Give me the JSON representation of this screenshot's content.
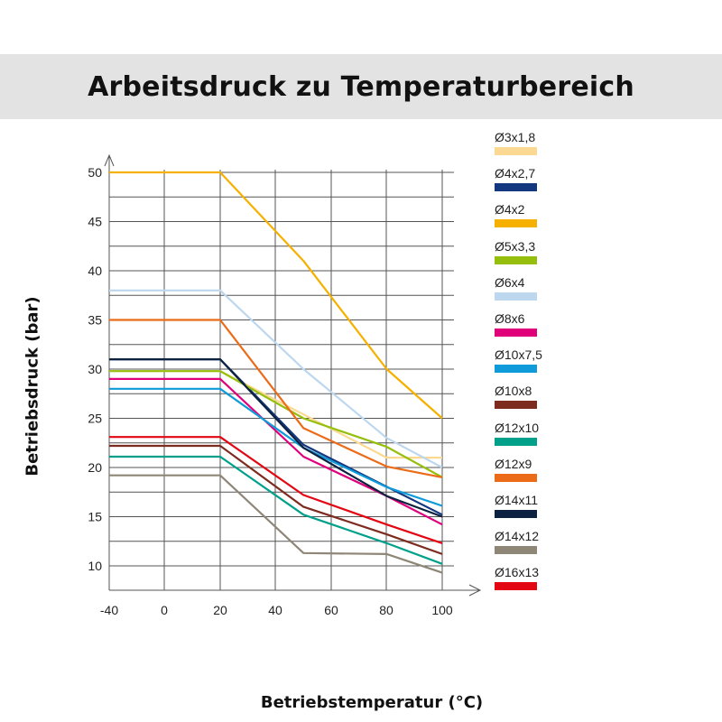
{
  "chart_data": {
    "type": "line",
    "title": "Arbeitsdruck zu Temperaturbereich",
    "xlabel": "Betriebstemperatur (°C)",
    "ylabel": "Betriebsdruck (bar)",
    "x_ticks": [
      "-40",
      "0",
      "20",
      "40",
      "60",
      "80",
      "100"
    ],
    "y_ticks": [
      "50",
      "45",
      "40",
      "35",
      "30",
      "25",
      "20",
      "15",
      "10"
    ],
    "grid": true,
    "legend_position": "right",
    "series": [
      {
        "name": "Ø3x1,8",
        "color": "#fcd993",
        "x": [
          -40,
          20,
          80,
          100
        ],
        "y": [
          29.8,
          29.8,
          21.0,
          21.0
        ]
      },
      {
        "name": "Ø4x2,7",
        "color": "#14387f",
        "x": [
          -40,
          20,
          50,
          100
        ],
        "y": [
          31.0,
          31.0,
          22.3,
          15.2
        ]
      },
      {
        "name": "Ø4x2",
        "color": "#f6b000",
        "x": [
          -40,
          20,
          50,
          80,
          100
        ],
        "y": [
          50.0,
          50.0,
          41.0,
          30.0,
          25.0
        ]
      },
      {
        "name": "Ø5x3,3",
        "color": "#96bf0d",
        "x": [
          -40,
          20,
          50,
          80,
          100
        ],
        "y": [
          29.8,
          29.8,
          25.0,
          22.1,
          19.0
        ]
      },
      {
        "name": "Ø6x4",
        "color": "#bdd7ee",
        "x": [
          -40,
          20,
          50,
          80,
          100
        ],
        "y": [
          38.0,
          38.0,
          30.0,
          23.0,
          20.0
        ]
      },
      {
        "name": "Ø8x6",
        "color": "#e0007a",
        "x": [
          -40,
          20,
          50,
          80,
          100
        ],
        "y": [
          29.0,
          29.0,
          21.1,
          17.1,
          14.2
        ]
      },
      {
        "name": "Ø10x7,5",
        "color": "#0f9bd9",
        "x": [
          -40,
          20,
          50,
          80,
          100
        ],
        "y": [
          28.0,
          28.0,
          22.0,
          18.0,
          16.1
        ]
      },
      {
        "name": "Ø10x8",
        "color": "#7d2b1e",
        "x": [
          -40,
          20,
          50,
          80,
          100
        ],
        "y": [
          22.2,
          22.2,
          16.0,
          13.2,
          11.2
        ]
      },
      {
        "name": "Ø12x10",
        "color": "#00a08a",
        "x": [
          -40,
          20,
          50,
          80,
          100
        ],
        "y": [
          21.1,
          21.1,
          15.2,
          12.3,
          10.2
        ]
      },
      {
        "name": "Ø12x9",
        "color": "#ec6b18",
        "x": [
          -40,
          20,
          50,
          80,
          100
        ],
        "y": [
          35.0,
          35.0,
          24.0,
          20.1,
          19.0
        ]
      },
      {
        "name": "Ø14x11",
        "color": "#0d2240",
        "x": [
          -40,
          20,
          50,
          80,
          100
        ],
        "y": [
          31.0,
          31.0,
          22.0,
          17.1,
          15.0
        ]
      },
      {
        "name": "Ø14x12",
        "color": "#8e8677",
        "x": [
          -40,
          20,
          50,
          80,
          100
        ],
        "y": [
          19.2,
          19.2,
          11.3,
          11.2,
          9.3
        ]
      },
      {
        "name": "Ø16x13",
        "color": "#e30613",
        "x": [
          -40,
          20,
          50,
          80,
          100
        ],
        "y": [
          23.1,
          23.1,
          17.2,
          14.2,
          12.3
        ]
      }
    ]
  }
}
